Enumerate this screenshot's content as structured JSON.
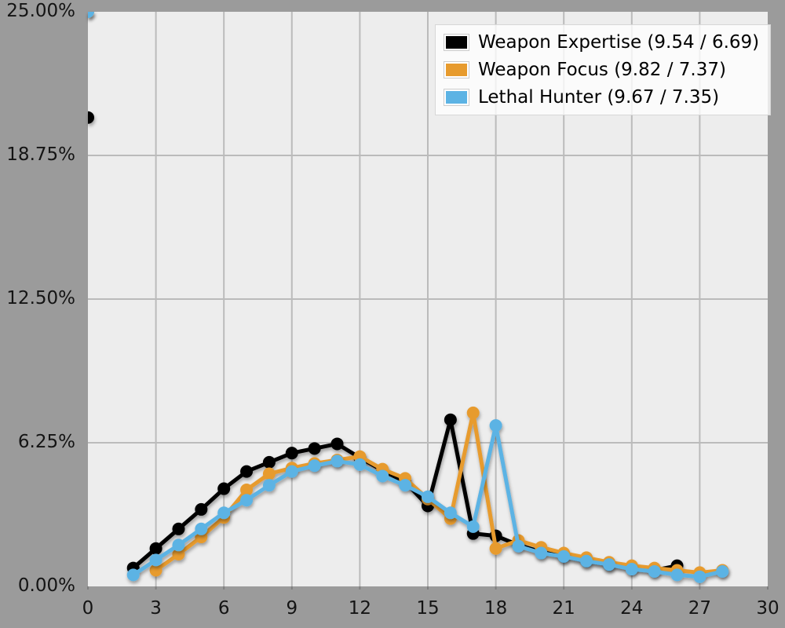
{
  "chart_data": {
    "type": "line",
    "title": "",
    "xlabel": "",
    "ylabel": "",
    "xlim": [
      0,
      30
    ],
    "ylim": [
      0,
      25
    ],
    "grid": true,
    "legend_position": "top-right",
    "x_ticks": [
      {
        "v": 0,
        "label": "0"
      },
      {
        "v": 3,
        "label": "3"
      },
      {
        "v": 6,
        "label": "6"
      },
      {
        "v": 9,
        "label": "9"
      },
      {
        "v": 12,
        "label": "12"
      },
      {
        "v": 15,
        "label": "15"
      },
      {
        "v": 18,
        "label": "18"
      },
      {
        "v": 21,
        "label": "21"
      },
      {
        "v": 24,
        "label": "24"
      },
      {
        "v": 27,
        "label": "27"
      },
      {
        "v": 30,
        "label": "30"
      }
    ],
    "y_ticks": [
      {
        "v": 25,
        "label": "25.00%"
      },
      {
        "v": 18.75,
        "label": "18.75%"
      },
      {
        "v": 12.5,
        "label": "12.50%"
      },
      {
        "v": 6.25,
        "label": "6.25%"
      },
      {
        "v": 0,
        "label": "0.00%"
      }
    ],
    "series": [
      {
        "name": "Weapon Expertise (9.54 / 6.69)",
        "color": "#000000",
        "points": [
          [
            0,
            20.4
          ],
          [
            2,
            0.8
          ],
          [
            3,
            1.65
          ],
          [
            4,
            2.5
          ],
          [
            5,
            3.35
          ],
          [
            6,
            4.25
          ],
          [
            7,
            5.0
          ],
          [
            8,
            5.4
          ],
          [
            9,
            5.8
          ],
          [
            10,
            6.0
          ],
          [
            11,
            6.2
          ],
          [
            12,
            5.6
          ],
          [
            13,
            5.05
          ],
          [
            14,
            4.55
          ],
          [
            15,
            3.5
          ],
          [
            16,
            7.25
          ],
          [
            17,
            2.3
          ],
          [
            18,
            2.2
          ],
          [
            19,
            1.8
          ],
          [
            20,
            1.5
          ],
          [
            21,
            1.3
          ],
          [
            22,
            1.1
          ],
          [
            23,
            0.95
          ],
          [
            24,
            0.8
          ],
          [
            25,
            0.7
          ],
          [
            26,
            0.9
          ]
        ]
      },
      {
        "name": "Weapon Focus (9.82 / 7.37)",
        "color": "#E79B2E",
        "points": [
          [
            0,
            25.0
          ],
          [
            3,
            0.7
          ],
          [
            4,
            1.4
          ],
          [
            5,
            2.15
          ],
          [
            6,
            3.0
          ],
          [
            7,
            4.2
          ],
          [
            8,
            4.9
          ],
          [
            9,
            5.15
          ],
          [
            10,
            5.35
          ],
          [
            11,
            5.5
          ],
          [
            12,
            5.65
          ],
          [
            13,
            5.1
          ],
          [
            14,
            4.7
          ],
          [
            15,
            3.8
          ],
          [
            16,
            2.95
          ],
          [
            17,
            7.55
          ],
          [
            18,
            1.65
          ],
          [
            19,
            2.0
          ],
          [
            20,
            1.7
          ],
          [
            21,
            1.45
          ],
          [
            22,
            1.25
          ],
          [
            23,
            1.05
          ],
          [
            24,
            0.9
          ],
          [
            25,
            0.8
          ],
          [
            26,
            0.7
          ],
          [
            27,
            0.6
          ],
          [
            28,
            0.7
          ]
        ]
      },
      {
        "name": "Lethal Hunter (9.67 / 7.35)",
        "color": "#5CB3E4",
        "points": [
          [
            0,
            25.0
          ],
          [
            2,
            0.5
          ],
          [
            3,
            1.15
          ],
          [
            4,
            1.8
          ],
          [
            5,
            2.5
          ],
          [
            6,
            3.2
          ],
          [
            7,
            3.75
          ],
          [
            8,
            4.4
          ],
          [
            9,
            5.0
          ],
          [
            10,
            5.25
          ],
          [
            11,
            5.45
          ],
          [
            12,
            5.3
          ],
          [
            13,
            4.8
          ],
          [
            14,
            4.4
          ],
          [
            15,
            3.9
          ],
          [
            16,
            3.2
          ],
          [
            17,
            2.6
          ],
          [
            18,
            7.0
          ],
          [
            19,
            1.75
          ],
          [
            20,
            1.45
          ],
          [
            21,
            1.3
          ],
          [
            22,
            1.1
          ],
          [
            23,
            0.95
          ],
          [
            24,
            0.75
          ],
          [
            25,
            0.65
          ],
          [
            26,
            0.5
          ],
          [
            27,
            0.42
          ],
          [
            28,
            0.65
          ]
        ]
      }
    ],
    "colors": {
      "page_background": "#9B9B9B",
      "plot_background": "#EDEDED",
      "gridline": "#BBBBBB",
      "tick_text": "#141414",
      "legend_background": "#F5F5F5",
      "legend_border": "#D7D7D7"
    }
  }
}
